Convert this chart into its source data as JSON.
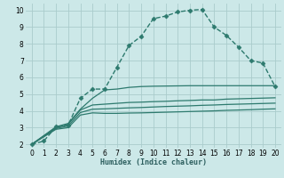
{
  "xlabel": "Humidex (Indice chaleur)",
  "bg_color": "#cce8e8",
  "grid_color": "#aacccc",
  "line_color": "#2d7a6e",
  "xlim": [
    -0.5,
    20.5
  ],
  "ylim": [
    1.8,
    10.4
  ],
  "x_ticks": [
    0,
    1,
    2,
    3,
    4,
    5,
    6,
    7,
    8,
    9,
    10,
    11,
    12,
    13,
    14,
    15,
    16,
    17,
    18,
    19,
    20
  ],
  "y_ticks": [
    2,
    3,
    4,
    5,
    6,
    7,
    8,
    9,
    10
  ],
  "series": [
    {
      "x": [
        0,
        1,
        2,
        3,
        4,
        5,
        6,
        7,
        8,
        9,
        10,
        11,
        12,
        13,
        14,
        15,
        16,
        17,
        18,
        19,
        20
      ],
      "y": [
        2.0,
        2.2,
        3.05,
        3.15,
        4.75,
        5.3,
        5.3,
        6.6,
        7.9,
        8.45,
        9.5,
        9.65,
        9.9,
        10.0,
        10.05,
        9.0,
        8.5,
        7.8,
        7.0,
        6.85,
        5.45
      ],
      "marker": "D",
      "markersize": 2.5,
      "linewidth": 1.0,
      "linestyle": "--",
      "zorder": 5
    },
    {
      "x": [
        0,
        2,
        3,
        4,
        5,
        6,
        7,
        8,
        9,
        10,
        11,
        12,
        13,
        14,
        15,
        16,
        17,
        18,
        19,
        20
      ],
      "y": [
        2.0,
        3.05,
        3.25,
        4.1,
        4.75,
        5.25,
        5.3,
        5.4,
        5.45,
        5.47,
        5.48,
        5.49,
        5.5,
        5.5,
        5.5,
        5.5,
        5.5,
        5.5,
        5.5,
        5.5
      ],
      "marker": null,
      "linewidth": 0.9,
      "linestyle": "-",
      "zorder": 4
    },
    {
      "x": [
        0,
        2,
        3,
        4,
        5,
        6,
        7,
        8,
        9,
        10,
        11,
        12,
        13,
        14,
        15,
        16,
        17,
        18,
        19,
        20
      ],
      "y": [
        2.0,
        3.0,
        3.2,
        4.05,
        4.35,
        4.4,
        4.45,
        4.5,
        4.52,
        4.55,
        4.57,
        4.6,
        4.62,
        4.65,
        4.65,
        4.7,
        4.72,
        4.74,
        4.76,
        4.78
      ],
      "marker": null,
      "linewidth": 0.9,
      "linestyle": "-",
      "zorder": 4
    },
    {
      "x": [
        0,
        2,
        3,
        4,
        5,
        6,
        7,
        8,
        9,
        10,
        11,
        12,
        13,
        14,
        15,
        16,
        17,
        18,
        19,
        20
      ],
      "y": [
        2.0,
        2.95,
        3.1,
        3.9,
        4.1,
        4.12,
        4.15,
        4.18,
        4.2,
        4.23,
        4.26,
        4.28,
        4.3,
        4.33,
        4.35,
        4.38,
        4.4,
        4.42,
        4.44,
        4.46
      ],
      "marker": null,
      "linewidth": 0.9,
      "linestyle": "-",
      "zorder": 4
    },
    {
      "x": [
        0,
        2,
        3,
        4,
        5,
        6,
        7,
        8,
        9,
        10,
        11,
        12,
        13,
        14,
        15,
        16,
        17,
        18,
        19,
        20
      ],
      "y": [
        2.0,
        2.9,
        3.0,
        3.75,
        3.88,
        3.85,
        3.85,
        3.87,
        3.88,
        3.9,
        3.92,
        3.94,
        3.96,
        3.98,
        4.0,
        4.03,
        4.05,
        4.07,
        4.1,
        4.12
      ],
      "marker": null,
      "linewidth": 0.9,
      "linestyle": "-",
      "zorder": 4
    }
  ]
}
